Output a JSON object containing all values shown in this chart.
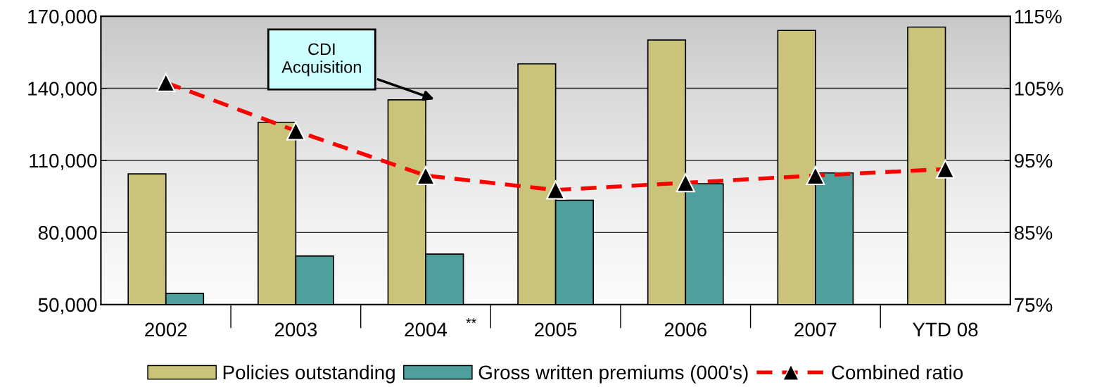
{
  "chart_data": {
    "type": "bar",
    "categories": [
      "2002",
      "2003",
      "2004",
      "2005",
      "2006",
      "2007",
      "YTD 08"
    ],
    "series": [
      {
        "name": "Policies outstanding",
        "color": "#c9c47a",
        "values": [
          104400,
          125800,
          135200,
          150200,
          160100,
          164100,
          165500
        ]
      },
      {
        "name": "Gross written premiums (000's)",
        "color": "#4f9f9d",
        "values": [
          54700,
          70200,
          71000,
          93400,
          100300,
          104800,
          null
        ]
      },
      {
        "name": "Combined ratio",
        "type": "line",
        "axis": "y2",
        "color": "#ff0000",
        "marker": "triangle",
        "line_style": "dashed",
        "values": [
          105.8,
          99.1,
          92.9,
          90.9,
          91.9,
          92.9,
          93.8
        ]
      }
    ],
    "ylim": [
      50000,
      170000
    ],
    "yticks": [
      {
        "value": 50000,
        "label": "50,000"
      },
      {
        "value": 80000,
        "label": "80,000"
      },
      {
        "value": 110000,
        "label": "110,000"
      },
      {
        "value": 140000,
        "label": "140,000"
      },
      {
        "value": 170000,
        "label": "170,000"
      }
    ],
    "y2lim": [
      75,
      115
    ],
    "y2ticks": [
      {
        "value": 75,
        "label": "75%"
      },
      {
        "value": 85,
        "label": "85%"
      },
      {
        "value": 95,
        "label": "95%"
      },
      {
        "value": 105,
        "label": "105%"
      },
      {
        "value": 115,
        "label": "115%"
      }
    ],
    "grid": "y",
    "legend": "bottom",
    "annotations": [
      {
        "text": "CDI\nAcquisition",
        "x": "2004",
        "y": 135200
      },
      "**"
    ]
  }
}
